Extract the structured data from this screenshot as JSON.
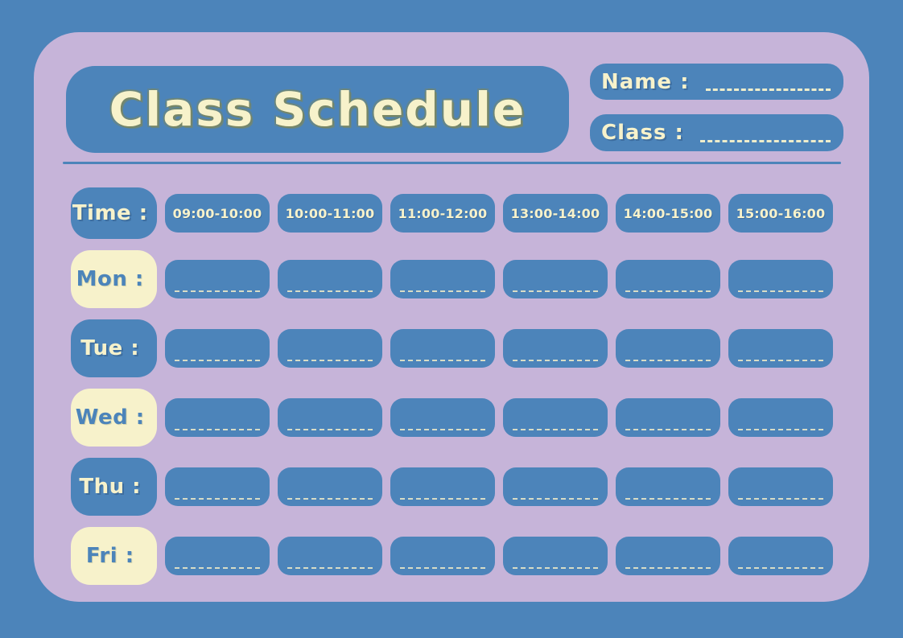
{
  "header": {
    "title": "Class Schedule",
    "name_field": {
      "label": "Name : ",
      "value": ""
    },
    "class_field": {
      "label": "Class : ",
      "value": ""
    }
  },
  "schedule": {
    "time_header": {
      "label": "Time : ",
      "slots": [
        "09:00-10:00",
        "10:00-11:00",
        "11:00-12:00",
        "13:00-14:00",
        "14:00-15:00",
        "15:00-16:00"
      ]
    },
    "days": [
      {
        "label": "Mon : ",
        "style": "cream",
        "cells": [
          "",
          "",
          "",
          "",
          "",
          ""
        ]
      },
      {
        "label": "Tue : ",
        "style": "blue",
        "cells": [
          "",
          "",
          "",
          "",
          "",
          ""
        ]
      },
      {
        "label": "Wed : ",
        "style": "cream",
        "cells": [
          "",
          "",
          "",
          "",
          "",
          ""
        ]
      },
      {
        "label": "Thu : ",
        "style": "blue",
        "cells": [
          "",
          "",
          "",
          "",
          "",
          ""
        ]
      },
      {
        "label": "Fri : ",
        "style": "cream",
        "cells": [
          "",
          "",
          "",
          "",
          "",
          ""
        ]
      }
    ]
  },
  "colors": {
    "background_blue": "#4C84BA",
    "card_lavender": "#C6B4D9",
    "box_blue": "#4C84BA",
    "cream": "#F7F2CB",
    "title_outline_olive": "#7D875A"
  }
}
